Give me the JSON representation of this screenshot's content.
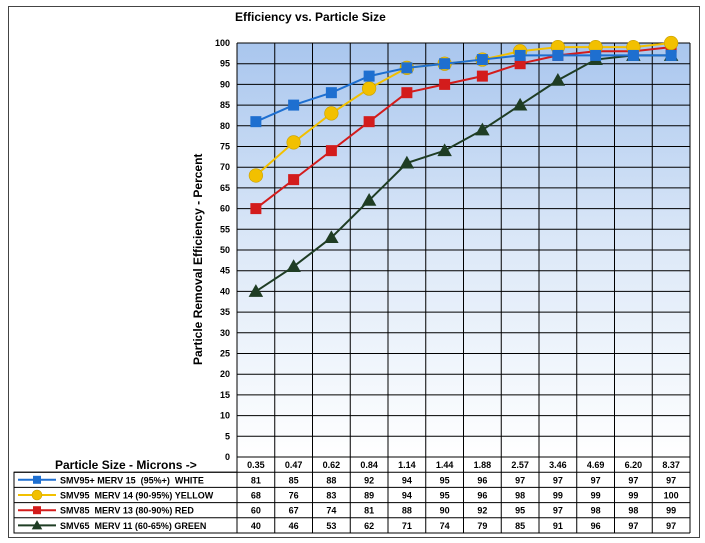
{
  "chart_data": {
    "type": "line",
    "title": "Efficiency vs. Particle Size",
    "ylabel": "Particle Removal Efficiency - Percent",
    "xlabel": "Particle Size - Microns ->",
    "ylim": [
      0,
      100
    ],
    "yticks": [
      0,
      5,
      10,
      15,
      20,
      25,
      30,
      35,
      40,
      45,
      50,
      55,
      60,
      65,
      70,
      75,
      80,
      85,
      90,
      95,
      100
    ],
    "categories": [
      "0.35",
      "0.47",
      "0.62",
      "0.84",
      "1.14",
      "1.44",
      "1.88",
      "2.57",
      "3.46",
      "4.69",
      "6.20",
      "8.37"
    ],
    "grid": true,
    "series": [
      {
        "name": "SMV95+ MERV 15  (95%+)  WHITE",
        "color": "#1e6fd0",
        "marker": "square",
        "values": [
          81,
          85,
          88,
          92,
          94,
          95,
          96,
          97,
          97,
          97,
          97,
          97
        ]
      },
      {
        "name": "SMV95  MERV 14 (90-95%) YELLOW",
        "color": "#f2c000",
        "marker": "circle",
        "values": [
          68,
          76,
          83,
          89,
          94,
          95,
          96,
          98,
          99,
          99,
          99,
          100
        ]
      },
      {
        "name": "SMV85  MERV 13 (80-90%) RED",
        "color": "#d31c1c",
        "marker": "square",
        "values": [
          60,
          67,
          74,
          81,
          88,
          90,
          92,
          95,
          97,
          98,
          98,
          99
        ]
      },
      {
        "name": "SMV65  MERV 11 (60-65%) GREEN",
        "color": "#1f3d24",
        "marker": "triangle",
        "values": [
          40,
          46,
          53,
          62,
          71,
          74,
          79,
          85,
          91,
          96,
          97,
          97
        ]
      }
    ]
  }
}
